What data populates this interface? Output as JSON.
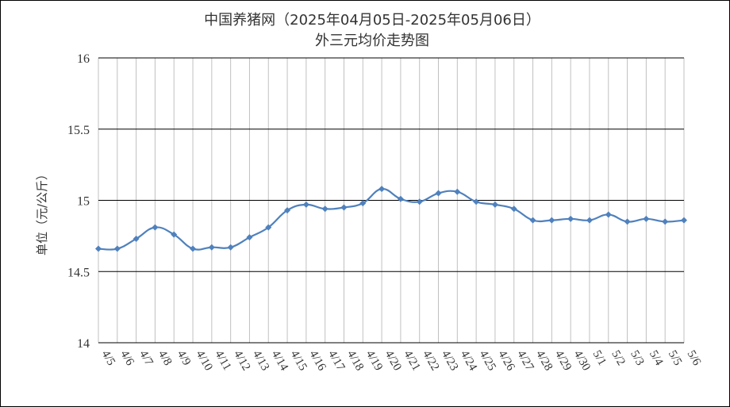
{
  "chart_data": {
    "type": "line",
    "title": "中国养猪网（2025年04月05日-2025年05月06日）",
    "subtitle": "外三元均价走势图",
    "xlabel": "",
    "ylabel": "单位（元/公斤）",
    "ylim": [
      14,
      16
    ],
    "yticks": [
      "14",
      "14.5",
      "15",
      "15.5",
      "16"
    ],
    "grid": "on",
    "legend": "none",
    "categories": [
      "4/5",
      "4/6",
      "4/7",
      "4/8",
      "4/9",
      "4/10",
      "4/11",
      "4/12",
      "4/13",
      "4/14",
      "4/15",
      "4/16",
      "4/17",
      "4/18",
      "4/19",
      "4/20",
      "4/21",
      "4/22",
      "4/23",
      "4/24",
      "4/25",
      "4/26",
      "4/27",
      "4/28",
      "4/29",
      "4/30",
      "5/1",
      "5/2",
      "5/3",
      "5/4",
      "5/5",
      "5/6"
    ],
    "series": [
      {
        "color": "#4F81BD",
        "values": [
          14.66,
          14.66,
          14.73,
          14.81,
          14.76,
          14.66,
          14.67,
          14.67,
          14.74,
          14.81,
          14.93,
          14.97,
          14.94,
          14.95,
          14.98,
          15.08,
          15.01,
          14.99,
          15.05,
          15.06,
          14.99,
          14.97,
          14.94,
          14.86,
          14.86,
          14.87,
          14.86,
          14.9,
          14.85,
          14.87,
          14.85,
          14.86
        ]
      }
    ]
  }
}
